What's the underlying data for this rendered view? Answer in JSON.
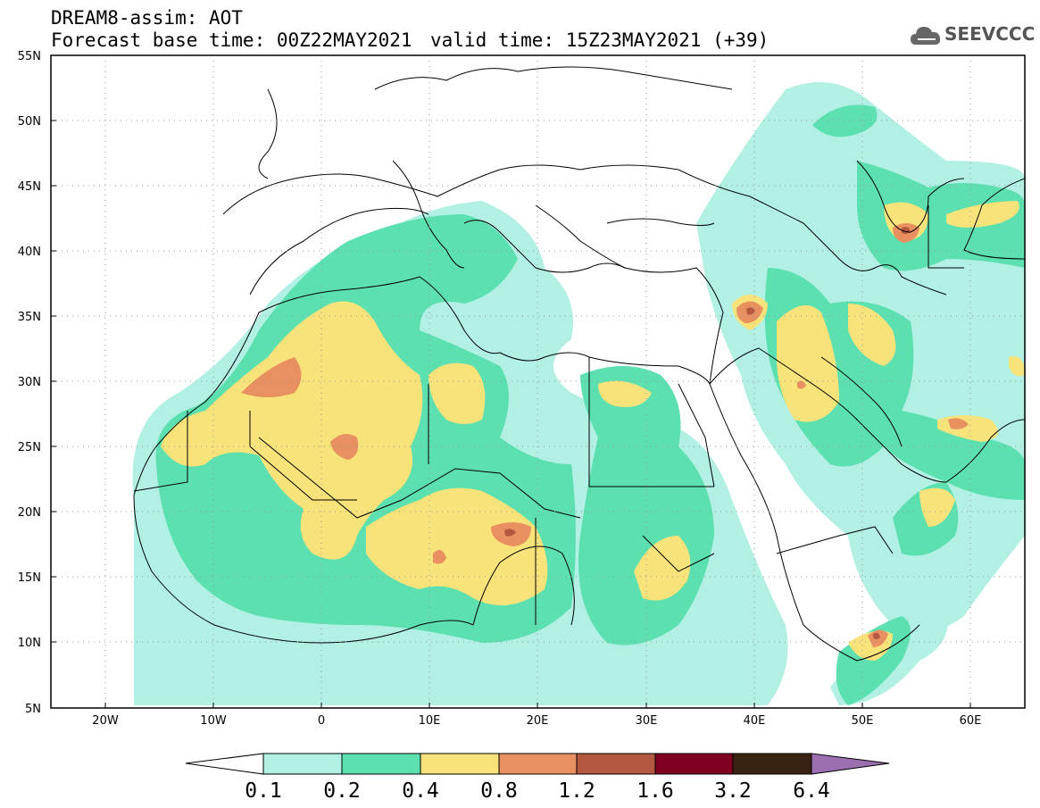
{
  "header": {
    "title_line1": "DREAM8-assim: AOT",
    "title_line2": "Forecast base time: 00Z22MAY2021",
    "valid_time": "valid time: 15Z23MAY2021 (+39)",
    "logo_text": "SEEVCCC",
    "logo_icon": "cloud-icon"
  },
  "map": {
    "lon_range": [
      -25,
      65
    ],
    "lat_range": [
      5,
      55
    ],
    "lon_ticks": [
      "20W",
      "10W",
      "0",
      "10E",
      "20E",
      "30E",
      "40E",
      "50E",
      "60E"
    ],
    "lat_ticks": [
      "55N",
      "50N",
      "45N",
      "40N",
      "35N",
      "30N",
      "25N",
      "20N",
      "15N",
      "10N",
      "5N"
    ]
  },
  "colorbar": {
    "labels": [
      "0.1",
      "0.2",
      "0.4",
      "0.8",
      "1.2",
      "1.6",
      "3.2",
      "6.4"
    ],
    "colors": [
      "#b2f0e4",
      "#5ce0b0",
      "#f8e27a",
      "#e89060",
      "#b45840",
      "#800020",
      "#3a2212",
      "#9b70b0"
    ]
  },
  "palette": {
    "level1": "#b2f0e4",
    "level2": "#5ce0b0",
    "level3": "#f8e27a",
    "level4": "#e89060",
    "level5": "#b45840"
  }
}
